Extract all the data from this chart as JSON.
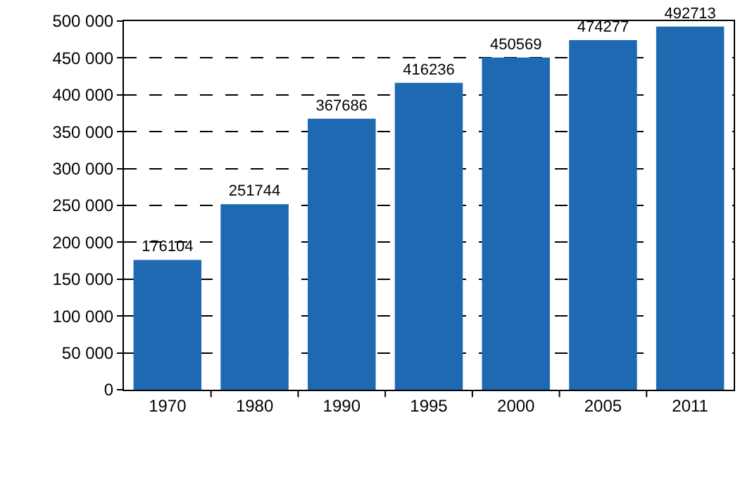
{
  "chart_data": {
    "type": "bar",
    "categories": [
      "1970",
      "1980",
      "1990",
      "1995",
      "2000",
      "2005",
      "2011"
    ],
    "values": [
      176104,
      251744,
      367686,
      416236,
      450569,
      474277,
      492713
    ],
    "color": "#1f69b3",
    "ylim": [
      0,
      500000
    ],
    "yticks": [
      0,
      {
        "value": 50000,
        "label": "50 000"
      },
      {
        "value": 100000,
        "label": "100 000"
      },
      {
        "value": 150000,
        "label": "150 000"
      },
      {
        "value": 200000,
        "label": "200 000"
      },
      {
        "value": 250000,
        "label": "250 000"
      },
      {
        "value": 300000,
        "label": "300 000"
      },
      {
        "value": 350000,
        "label": "350 000"
      },
      {
        "value": 400000,
        "label": "400 000"
      },
      {
        "value": 450000,
        "label": "450 000"
      },
      {
        "value": 500000,
        "label": "500 000"
      }
    ],
    "grid": "y",
    "data_labels": true
  }
}
